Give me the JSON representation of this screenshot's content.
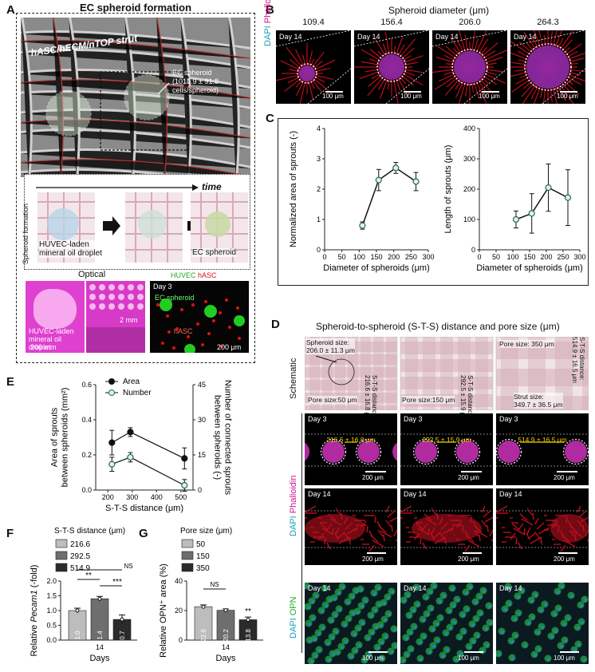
{
  "panel_a": {
    "letter": "A",
    "title": "EC spheroid formation",
    "strut_label": "hASC/hECM/nTOP strut",
    "spheroid_label": "EC spheroid",
    "cells_label": "(1018.9 ± 91.8",
    "cells_label2": "cells/spheroid)",
    "schematic_side": "Spheroid formation",
    "time_label": "time",
    "droplet_label": "HUVEC-laden",
    "droplet_label2": "mineral oil droplet",
    "ec_label": "EC spheroid",
    "optical_label": "Optical",
    "opt_droplet": "HUVEC-laden",
    "opt_droplet2": "mineral oil droplet",
    "scale_200mm": "200 mm",
    "scale_2mm": "2 mm",
    "fluo_day": "Day 3",
    "fluo_huvec": "HUVEC",
    "fluo_hasc": "hASC",
    "fluo_ec": "EC spheroid",
    "fluo_hasc2": "hASC",
    "scale_200um": "200 μm"
  },
  "panel_b": {
    "letter": "B",
    "title": "Spheroid diameter (μm)",
    "diameters": [
      "109.4",
      "156.4",
      "206.0",
      "264.3"
    ],
    "day": "Day 14",
    "scale": "100 μm",
    "side_dapi": "DAPI",
    "side_phal": "Phalloidin"
  },
  "panel_c": {
    "letter": "C",
    "chart_data": [
      {
        "type": "line",
        "xlabel": "Diameter of spheroids (μm)",
        "ylabel": "Normalized area of sprouts (-)",
        "xlim": [
          0,
          300
        ],
        "ylim": [
          0,
          4
        ],
        "xticks": [
          0,
          50,
          100,
          150,
          200,
          250,
          300
        ],
        "yticks": [
          0,
          1,
          2,
          3,
          4
        ],
        "x": [
          109.4,
          156.4,
          206.0,
          264.3
        ],
        "y": [
          0.8,
          2.3,
          2.7,
          2.25
        ],
        "err": [
          0.12,
          0.35,
          0.18,
          0.3
        ]
      },
      {
        "type": "line",
        "xlabel": "Diameter of spheroids (μm)",
        "ylabel": "Length of sprouts (μm)",
        "xlim": [
          0,
          300
        ],
        "ylim": [
          0,
          400
        ],
        "xticks": [
          0,
          50,
          100,
          150,
          200,
          250,
          300
        ],
        "yticks": [
          0,
          100,
          200,
          300,
          400
        ],
        "x": [
          109.4,
          156.4,
          206.0,
          264.3
        ],
        "y": [
          100,
          120,
          205,
          172
        ],
        "err": [
          28,
          65,
          78,
          92
        ]
      }
    ]
  },
  "panel_d": {
    "letter": "D",
    "title": "Spheroid-to-spheroid (S-T-S) distance and pore size (μm)",
    "row_schematic": "Schematic",
    "row_dapi": "DAPI",
    "row_phal": "Phalloidin",
    "row_dapi2": "DAPI",
    "row_opn": "OPN",
    "sch1_size": "Spheroid size:",
    "sch1_size_val": "206.0 ± 11.3 μm",
    "sch1_sts": "S-T-S distance:",
    "sch1_sts_val": "216.6 ± 16.8 μm",
    "sch1_pore": "Pore size:50 μm",
    "sch2_sts": "S-T-S distance:",
    "sch2_sts_val": "292.5 ± 15.9 μm",
    "sch2_pore": "Pore size:150 μm",
    "sch3_pore": "Pore size: 350 μm",
    "sch3_sts": "S-T-S distance:",
    "sch3_sts_val": "514.9 ± 16.5 μm",
    "sch3_strut": "Strut size:",
    "sch3_strut_val": "349.7 ± 36.5 μm",
    "day3": "Day 3",
    "day14": "Day 14",
    "dist1": "216.6 ± 16.8 μm",
    "dist2": "292.5 ± 15.9 μm",
    "dist3": "514.9 ± 16.5 μm",
    "scale200": "200 μm",
    "scale100": "100 μm"
  },
  "panel_e": {
    "letter": "E",
    "chart_data": {
      "type": "line",
      "xlabel": "S-T-S distance (μm)",
      "ylabel": "Area of sprouts between spheroids (mm²)",
      "ylabel2": "Number of connected sprouts between spheroids (-)",
      "xlim": [
        150,
        550
      ],
      "xticks": [
        200,
        300,
        400,
        500
      ],
      "ylim": [
        0,
        0.6
      ],
      "yticks": [
        "0.0",
        "0.2",
        "0.4",
        "0.6"
      ],
      "y2lim": [
        0,
        45
      ],
      "y2ticks": [
        0,
        15,
        30,
        45
      ],
      "series": [
        {
          "name": "Area",
          "x": [
            216.6,
            292.5,
            514.9
          ],
          "y": [
            0.27,
            0.33,
            0.18
          ],
          "err": [
            0.07,
            0.025,
            0.06
          ],
          "axis": "left"
        },
        {
          "name": "Number",
          "x": [
            216.6,
            292.5,
            514.9
          ],
          "y": [
            11,
            14,
            2
          ],
          "err": [
            3,
            2,
            2.5
          ],
          "axis": "right"
        }
      ]
    }
  },
  "panel_f": {
    "letter": "F",
    "chart_data": {
      "type": "bar",
      "legend_title": "S-T-S distance (μm)",
      "categories": [
        "216.6",
        "292.5",
        "514.9"
      ],
      "values": [
        1.0,
        1.4,
        0.7
      ],
      "value_labels": [
        "1.0",
        "1.4",
        "0.7"
      ],
      "err": [
        0.08,
        0.08,
        0.15
      ],
      "colors": [
        "#bdbdbd",
        "#6e6e6e",
        "#2b2b2b"
      ],
      "ylabel_pre": "Relative ",
      "ylabel_gene": "Pecam1",
      "ylabel_post": " (-fold)",
      "xlabel": "Days",
      "xtick": "14",
      "ylim": [
        0,
        2.0
      ],
      "yticks": [
        "0.0",
        "0.5",
        "1.0",
        "1.5",
        "2.0"
      ],
      "sig": [
        "**",
        "***",
        "NS"
      ]
    }
  },
  "panel_g": {
    "letter": "G",
    "chart_data": {
      "type": "bar",
      "legend_title": "Pore size (μm)",
      "categories": [
        "50",
        "150",
        "350"
      ],
      "values": [
        22.6,
        20.2,
        13.8
      ],
      "value_labels": [
        "22.6",
        "20.2",
        "13.8"
      ],
      "err": [
        1.2,
        0.9,
        1.8
      ],
      "colors": [
        "#bdbdbd",
        "#6e6e6e",
        "#2b2b2b"
      ],
      "ylabel": "Relative OPN⁺ area (%)",
      "xlabel": "Days",
      "xtick": "14",
      "ylim": [
        0,
        40
      ],
      "yticks": [
        "0",
        "20",
        "40"
      ],
      "sig": [
        "NS",
        "**"
      ]
    }
  }
}
